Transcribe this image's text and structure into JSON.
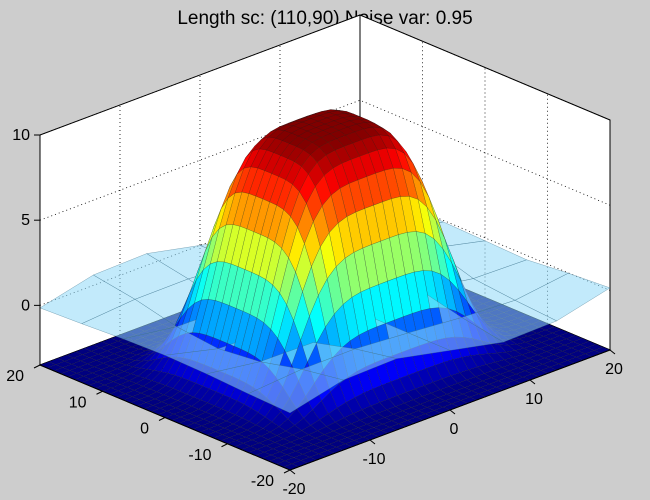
{
  "chart_data": {
    "type": "surface",
    "title": "Length sc: (110,90) Noise var: 0.95",
    "xlabel": "",
    "ylabel": "",
    "zlabel": "",
    "xlim": [
      -20,
      20
    ],
    "ylim": [
      -20,
      20
    ],
    "zlim": [
      -3.5,
      10
    ],
    "x_ticks": [
      -20,
      -10,
      0,
      10,
      20
    ],
    "y_ticks": [
      -20,
      -10,
      0,
      10,
      20
    ],
    "z_ticks": [
      0,
      5,
      10
    ],
    "x_tick_labels": [
      "-20",
      "-10",
      "0",
      "10",
      "20"
    ],
    "y_tick_labels": [
      "-20",
      "-10",
      "0",
      "10",
      "20"
    ],
    "z_tick_labels": [
      "0",
      "5",
      "10"
    ],
    "surface": {
      "description": "smooth bump centred near origin, peak about 10, falling to about -3.5 at the corners",
      "peak_value": 10.2,
      "peak_x": 0,
      "peak_y": 0,
      "min_value": -3.5
    },
    "overlay_plane": {
      "description": "translucent light-blue surface near z = 0 with small local bumps",
      "level": 0
    },
    "grid": true,
    "colormap": "jet",
    "colors": {
      "background": "#cdcdcd",
      "axes_bg": "#ffffff",
      "overlay": "#8fd8f8"
    }
  }
}
